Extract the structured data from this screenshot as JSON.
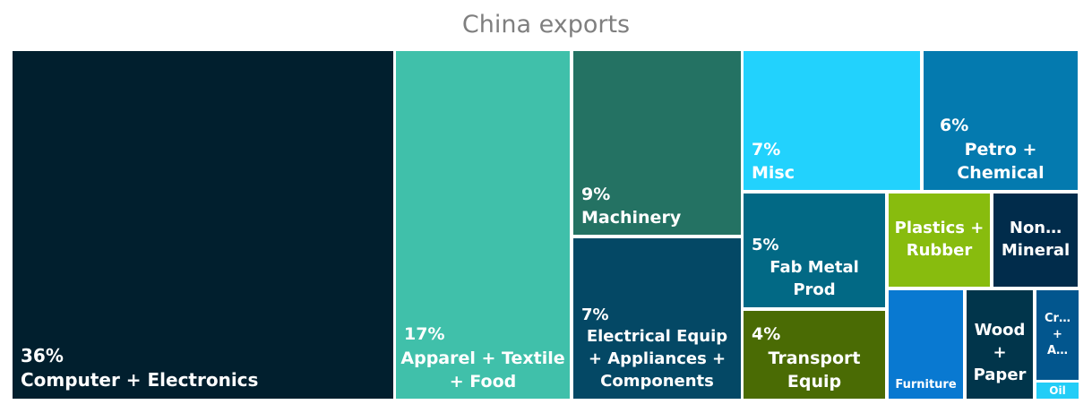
{
  "chart_data": {
    "type": "treemap",
    "title": "China exports",
    "units": "%",
    "items": [
      {
        "label": "Computer + Electronics",
        "value": 36,
        "value_label": "36%",
        "color": "#011f2e"
      },
      {
        "label": "Apparel + Textile + Food",
        "value": 17,
        "value_label": "17%",
        "color": "#40c0aa"
      },
      {
        "label": "Machinery",
        "value": 9,
        "value_label": "9%",
        "color": "#247263"
      },
      {
        "label": "Electrical Equip + Appliances + Components",
        "value": 7,
        "value_label": "7%",
        "color": "#044865"
      },
      {
        "label": "Misc",
        "value": 7,
        "value_label": "7%",
        "color": "#22d2fd"
      },
      {
        "label": "Petro + Chemical",
        "value": 6,
        "value_label": "6%",
        "color": "#047aaf"
      },
      {
        "label": "Fab Metal Prod",
        "value": 5,
        "value_label": "5%",
        "color": "#026985"
      },
      {
        "label": "Transport Equip",
        "value": 4,
        "value_label": "4%",
        "color": "#4a6b04"
      },
      {
        "label": "Plastics + Rubber",
        "value": null,
        "value_label": "",
        "color": "#88bc0e"
      },
      {
        "label": "Non… Mineral",
        "value": null,
        "value_label": "",
        "color": "#012c4b"
      },
      {
        "label": "Furniture",
        "value": null,
        "value_label": "",
        "color": "#0979d1"
      },
      {
        "label": "Wood + Paper",
        "value": null,
        "value_label": "",
        "color": "#01354b"
      },
      {
        "label": "Cr… + A…",
        "value": null,
        "value_label": "",
        "color": "#02568e"
      },
      {
        "label": "Oil",
        "value": null,
        "value_label": "",
        "color": "#23cdf7"
      }
    ]
  }
}
